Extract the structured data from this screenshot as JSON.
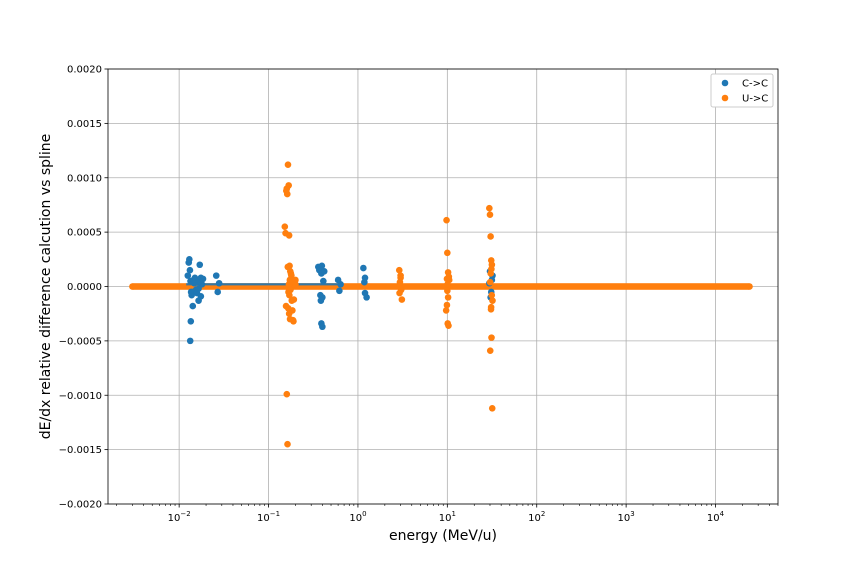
{
  "chart_data": {
    "type": "scatter",
    "title": "",
    "xlabel": "energy (MeV/u)",
    "ylabel": "dE/dx relative difference calcution vs spline",
    "xscale": "log",
    "xlim": [
      0.0016,
      50000
    ],
    "ylim": [
      -0.002,
      0.002
    ],
    "yticks": [
      "−0.0020",
      "−0.0015",
      "−0.0010",
      "−0.0005",
      "0.0000",
      "0.0005",
      "0.0010",
      "0.0015",
      "0.0020"
    ],
    "yticks_values": [
      -0.002,
      -0.0015,
      -0.001,
      -0.0005,
      0,
      0.0005,
      0.001,
      0.0015,
      0.002
    ],
    "xticks_exponents": [
      "−2",
      "−1",
      "0",
      "1",
      "2",
      "3",
      "4"
    ],
    "xticks_values": [
      0.01,
      0.1,
      1,
      10,
      100,
      1000,
      10000
    ],
    "xticks_base": "10",
    "grid": true,
    "legend_position": "top-right",
    "series": [
      {
        "name": "C->C",
        "color": "#1f77b4",
        "x": [
          0.0125,
          0.0128,
          0.013,
          0.0132,
          0.0134,
          0.0136,
          0.0138,
          0.014,
          0.0145,
          0.015,
          0.0155,
          0.016,
          0.0165,
          0.017,
          0.0175,
          0.018,
          0.0185,
          0.0133,
          0.0135,
          0.0142,
          0.0148,
          0.0158,
          0.0168,
          0.0175,
          0.0165,
          0.026,
          0.027,
          0.028,
          0.36,
          0.37,
          0.38,
          0.39,
          0.4,
          0.41,
          0.42,
          0.39,
          0.4,
          0.385,
          0.395,
          0.6,
          0.62,
          0.64,
          1.15,
          1.2,
          1.25,
          1.2,
          1.18,
          30,
          31,
          32,
          30.5,
          31.5,
          29.5
        ],
        "y": [
          0.0001,
          0.00022,
          0.00025,
          0.00015,
          5e-05,
          -5e-05,
          -8e-05,
          -5e-05,
          6e-05,
          8e-05,
          -3e-05,
          4e-05,
          -0.00013,
          0.0002,
          -9e-05,
          2e-05,
          7e-05,
          -0.0005,
          -0.00032,
          -0.00018,
          3e-05,
          -6e-05,
          5e-05,
          8e-05,
          -2e-05,
          0.0001,
          -5e-05,
          3e-05,
          0.00018,
          0.00015,
          -8e-05,
          0.00012,
          -0.0001,
          5e-05,
          0.00014,
          -0.00034,
          -0.00037,
          -0.00013,
          0.00019,
          6e-05,
          -4e-05,
          2e-05,
          0.00017,
          8e-05,
          -0.0001,
          -6e-05,
          4e-05,
          0.00014,
          -5e-05,
          0.0001,
          -0.0001,
          6e-05,
          3e-05
        ]
      },
      {
        "name": "U->C",
        "color": "#ff7f0e",
        "x": [
          0.152,
          0.155,
          0.158,
          0.16,
          0.162,
          0.165,
          0.168,
          0.17,
          0.172,
          0.175,
          0.178,
          0.18,
          0.182,
          0.185,
          0.188,
          0.19,
          0.195,
          0.2,
          0.16,
          0.163,
          0.166,
          0.17,
          0.174,
          0.178,
          0.167,
          0.169,
          0.171,
          0.173,
          0.176,
          0.164,
          0.157,
          0.185,
          0.192,
          0.2,
          2.9,
          3.0,
          3.1,
          2.95,
          3.05,
          3.0,
          2.92,
          9.8,
          10.0,
          10.2,
          10.4,
          9.9,
          10.1,
          10.3,
          9.7,
          10.5,
          10.0,
          9.9,
          10.2,
          10.05,
          29.5,
          30.0,
          30.5,
          31.0,
          31.5,
          32.0,
          30.8,
          31.2,
          30.2,
          31.8,
          30.6,
          31.4,
          30.1,
          31.1,
          30.9
        ],
        "y": [
          0.00055,
          0.00049,
          0.00088,
          0.0009,
          0.00085,
          0.00112,
          0.00093,
          0.00047,
          0.00019,
          0.00014,
          0.00012,
          0.0001,
          -0.00013,
          -0.00022,
          -0.00031,
          -0.00032,
          3e-05,
          6e-05,
          -0.00099,
          -0.00145,
          -0.0002,
          -0.00025,
          -0.0003,
          4e-05,
          -5e-05,
          2e-05,
          -8e-05,
          6e-05,
          -3e-05,
          0.00018,
          -0.00018,
          5e-05,
          -0.00012,
          2e-05,
          0.00015,
          8e-05,
          -0.00012,
          4e-05,
          -3e-05,
          0.0001,
          -6e-05,
          0.00061,
          0.00031,
          0.00013,
          9e-05,
          -0.00017,
          -0.00034,
          -0.00036,
          -0.00022,
          6e-05,
          -4e-05,
          7e-05,
          -0.0001,
          2e-05,
          0.00072,
          0.00066,
          0.00046,
          0.00024,
          0.0002,
          -0.00013,
          -0.00021,
          -0.00047,
          -0.00059,
          -0.00112,
          0.00012,
          -8e-05,
          4e-05,
          0.00016,
          -0.00019
        ]
      }
    ]
  }
}
